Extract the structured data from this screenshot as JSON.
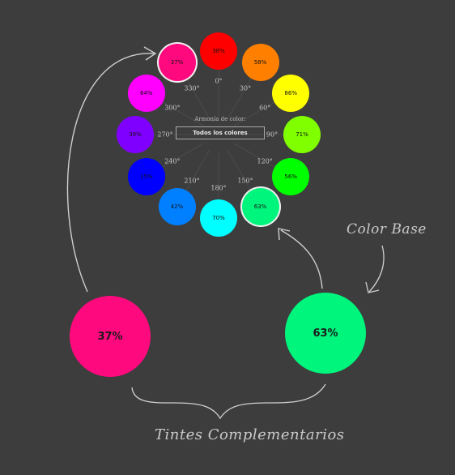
{
  "wheel": {
    "swatches": [
      {
        "label": "38%",
        "color": "#ff0000",
        "degree": "0°"
      },
      {
        "label": "58%",
        "color": "#ff8000",
        "degree": "30°"
      },
      {
        "label": "86%",
        "color": "#ffff00",
        "degree": "60°"
      },
      {
        "label": "71%",
        "color": "#80ff00",
        "degree": "90°"
      },
      {
        "label": "56%",
        "color": "#00ff00",
        "degree": "120°"
      },
      {
        "label": "63%",
        "color": "#00f57d",
        "degree": "150°",
        "selected": true
      },
      {
        "label": "70%",
        "color": "#00ffff",
        "degree": "180°"
      },
      {
        "label": "42%",
        "color": "#0080ff",
        "degree": "210°"
      },
      {
        "label": "15%",
        "color": "#0000ff",
        "degree": "240°"
      },
      {
        "label": "39%",
        "color": "#8000ff",
        "degree": "270°"
      },
      {
        "label": "64%",
        "color": "#ff00ff",
        "degree": "300°"
      },
      {
        "label": "37%",
        "color": "#ff0a7e",
        "degree": "330°",
        "selected": true
      }
    ],
    "harmony_label": "Armonía de color:",
    "harmony_value": "Todos los colores"
  },
  "tints": {
    "left": {
      "label": "37%",
      "color": "#ff0a7e"
    },
    "right": {
      "label": "63%",
      "color": "#00f57d"
    }
  },
  "annotations": {
    "base": "Color Base",
    "complementary": "Tintes Complementarios"
  },
  "colors": {
    "background": "#3d3d3d",
    "ink": "#c9c9c9"
  }
}
